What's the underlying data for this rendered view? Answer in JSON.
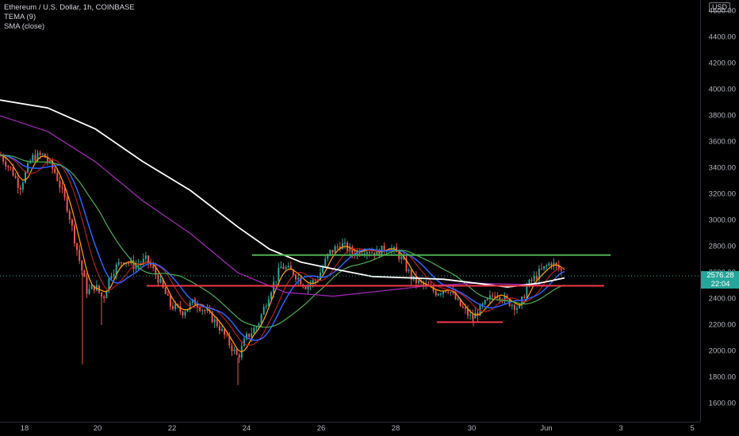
{
  "legend": {
    "symbol_line": "Ethereum / U.S. Dollar, 1h, COINBASE",
    "indicator_1": "TEMA (9)",
    "indicator_2": "SMA (close)"
  },
  "price_scale": {
    "currency": "USD",
    "labels": [
      "4600.00",
      "4400.00",
      "4200.00",
      "4000.00",
      "3800.00",
      "3600.00",
      "3400.00",
      "3200.00",
      "3000.00",
      "2800.00",
      "2600.00",
      "2400.00",
      "2200.00",
      "2000.00",
      "1800.00",
      "1600.00"
    ],
    "current_price": "2576.28",
    "countdown": "22:04"
  },
  "time_scale": {
    "labels": [
      "18",
      "20",
      "22",
      "24",
      "26",
      "28",
      "30",
      "Jun",
      "3",
      "5"
    ]
  },
  "colors": {
    "background": "#000000",
    "candle_up": "#26a69a",
    "candle_down": "#ef5350",
    "tema": "#ff9800",
    "sma_white": "#ffffff",
    "sma_purple": "#9c27b0",
    "sma_green": "#4caf50",
    "sma_blue": "#2962ff",
    "sma_darkred": "#b71c1c",
    "resistance_line": "#4caf50",
    "support_line": "#f23645"
  }
}
